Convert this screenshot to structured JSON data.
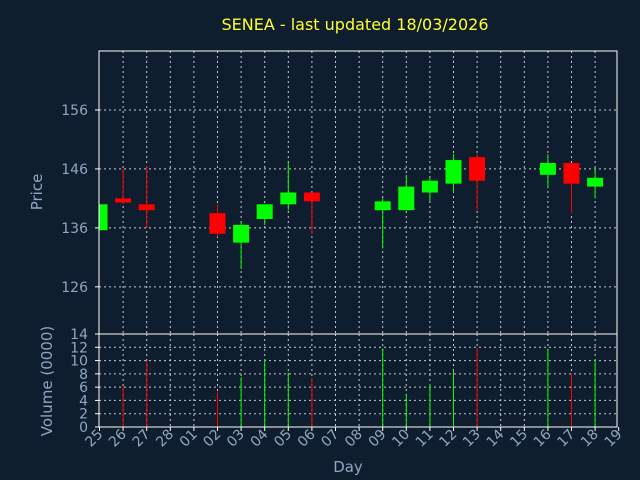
{
  "chart_data": {
    "type": "candlestick",
    "title": "SENEA - last updated 18/03/2026",
    "colors": {
      "background": "#0f1e2e",
      "frame": "#ffffff",
      "grid": "#c8c8c8",
      "up": "#00ff00",
      "down": "#ff0000",
      "axis_text": "#8fa7c0",
      "title": "#ffff33"
    },
    "price_panel": {
      "ylabel": "Price",
      "ylim": [
        118,
        166
      ],
      "yticks": [
        126,
        136,
        146,
        156
      ]
    },
    "volume_panel": {
      "ylabel": "Volume (0000)",
      "ylim": [
        0,
        14
      ],
      "yticks": [
        0,
        2,
        4,
        6,
        8,
        10,
        12,
        14
      ]
    },
    "xlabel": "Day",
    "x_ticks": [
      "25",
      "26",
      "27",
      "28",
      "01",
      "02",
      "03",
      "04",
      "05",
      "06",
      "07",
      "08",
      "09",
      "10",
      "11",
      "12",
      "13",
      "14",
      "15",
      "16",
      "17",
      "18",
      "19"
    ],
    "candles": [
      {
        "day": "25",
        "open": 135.6,
        "close": 140.0,
        "high": 140.0,
        "low": 135.6,
        "volume": 0
      },
      {
        "day": "26",
        "open": 141.0,
        "close": 140.3,
        "high": 146.0,
        "low": 140.0,
        "volume": 6.1
      },
      {
        "day": "27",
        "open": 140.0,
        "close": 139.0,
        "high": 146.5,
        "low": 136.0,
        "volume": 10.0
      },
      {
        "day": "02",
        "open": 138.5,
        "close": 135.0,
        "high": 140.0,
        "low": 134.5,
        "volume": 5.2
      },
      {
        "day": "03",
        "open": 133.5,
        "close": 136.5,
        "high": 137.0,
        "low": 129.0,
        "volume": 7.5
      },
      {
        "day": "04",
        "open": 137.5,
        "close": 140.0,
        "high": 140.0,
        "low": 136.5,
        "volume": 10.2
      },
      {
        "day": "05",
        "open": 140.0,
        "close": 142.0,
        "high": 147.0,
        "low": 139.0,
        "volume": 8.2
      },
      {
        "day": "06",
        "open": 142.0,
        "close": 140.5,
        "high": 142.0,
        "low": 135.0,
        "volume": 7.3
      },
      {
        "day": "09",
        "open": 139.0,
        "close": 140.5,
        "high": 141.0,
        "low": 132.5,
        "volume": 11.8
      },
      {
        "day": "10",
        "open": 139.0,
        "close": 143.0,
        "high": 145.0,
        "low": 139.0,
        "volume": 5.0
      },
      {
        "day": "11",
        "open": 142.0,
        "close": 144.0,
        "high": 144.5,
        "low": 140.5,
        "volume": 6.5
      },
      {
        "day": "12",
        "open": 143.5,
        "close": 147.5,
        "high": 148.5,
        "low": 142.0,
        "volume": 8.5
      },
      {
        "day": "13",
        "open": 148.0,
        "close": 144.0,
        "high": 148.5,
        "low": 139.0,
        "volume": 11.8
      },
      {
        "day": "16",
        "open": 145.0,
        "close": 147.0,
        "high": 148.5,
        "low": 143.0,
        "volume": 11.8
      },
      {
        "day": "17",
        "open": 147.0,
        "close": 143.5,
        "high": 147.0,
        "low": 138.5,
        "volume": 8.0
      },
      {
        "day": "18",
        "open": 143.0,
        "close": 144.5,
        "high": 146.0,
        "low": 141.0,
        "volume": 10.2
      }
    ]
  }
}
